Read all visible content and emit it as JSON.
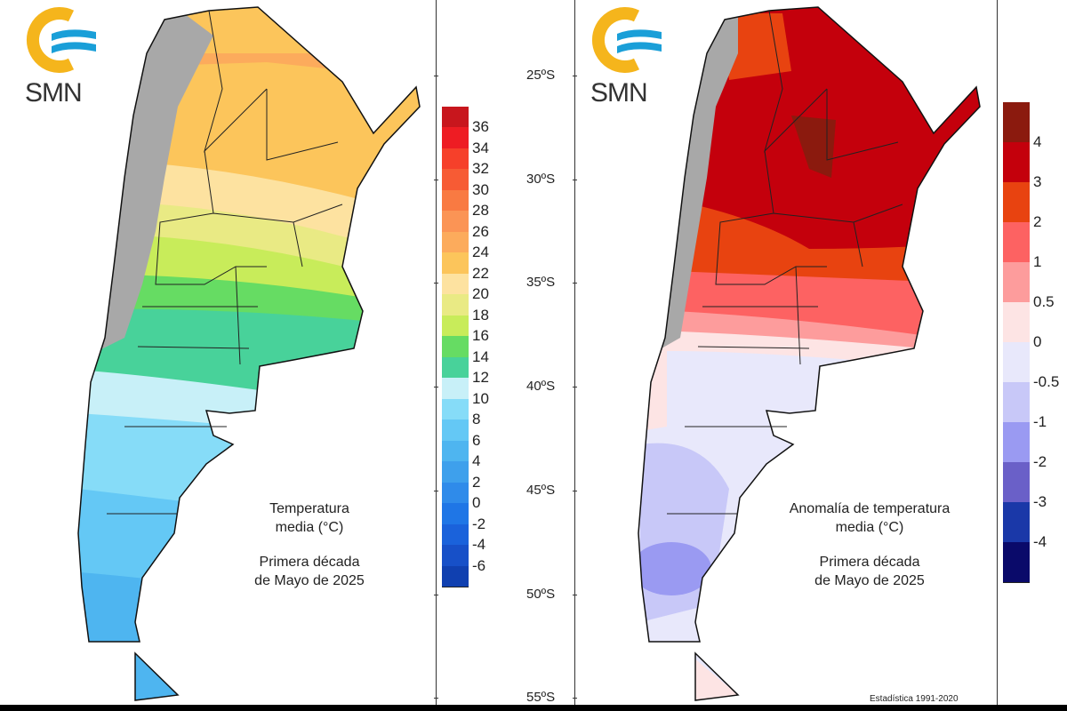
{
  "logo": {
    "text": "SMN",
    "colors": {
      "ring": "#f5b51c",
      "waves": "#1a9fd8"
    }
  },
  "left_map": {
    "title": "Temperatura media (°C)",
    "period_line1": "Primera década",
    "period_line2": "de Mayo de 2025",
    "legend": {
      "labels": [
        "36",
        "34",
        "32",
        "30",
        "28",
        "26",
        "24",
        "22",
        "20",
        "18",
        "16",
        "14",
        "12",
        "10",
        "8",
        "6",
        "4",
        "2",
        "0",
        "-2",
        "-4",
        "-6"
      ],
      "colors": [
        "#c8161d",
        "#ee1c23",
        "#f6402a",
        "#f75b34",
        "#f97a42",
        "#fb9455",
        "#fcab5c",
        "#fcc55b",
        "#fde2a0",
        "#e9ea84",
        "#c8ec5a",
        "#66dc63",
        "#48d29a",
        "#c8f0f8",
        "#86dcf8",
        "#64c8f5",
        "#4eb5f0",
        "#3ea0ec",
        "#2f8bea",
        "#1f76e6",
        "#1a62db",
        "#1750c8",
        "#1040b0"
      ]
    }
  },
  "right_map": {
    "title_line1": "Anomalía de temperatura",
    "title_line2": "media (°C)",
    "period_line1": "Primera década",
    "period_line2": "de Mayo de 2025",
    "footnote": "Estadística 1991-2020",
    "latitudes": [
      "25ºS",
      "30ºS",
      "35ºS",
      "40ºS",
      "45ºS",
      "50ºS",
      "55ºS"
    ],
    "legend": {
      "labels": [
        "4",
        "3",
        "2",
        "1",
        "0.5",
        "0",
        "-0.5",
        "-1",
        "-2",
        "-3",
        "-4"
      ],
      "colors": [
        "#8b1a0e",
        "#c4000c",
        "#e84310",
        "#fd6262",
        "#fd9c9c",
        "#fde4e4",
        "#e8e8fb",
        "#c8c8f8",
        "#9a9af2",
        "#6a60c8",
        "#1a38a8",
        "#0a0a6a"
      ]
    }
  }
}
